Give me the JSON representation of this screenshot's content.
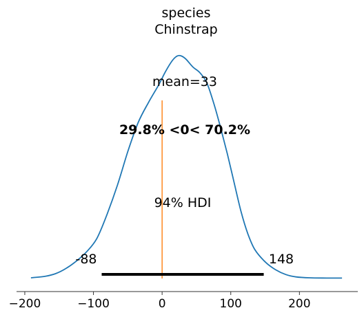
{
  "chart_data": {
    "type": "line",
    "title_line1": "species",
    "title_line2": "Chinstrap",
    "mean_label": "mean=33",
    "reference_label": "29.8% <0< 70.2%",
    "hdi_label": "94% HDI",
    "hdi_low_label": "-88",
    "hdi_high_label": "148",
    "hdi": [
      -88,
      148
    ],
    "reference_value": 0,
    "xlim": [
      -212,
      285
    ],
    "ylim": [
      0,
      1.06
    ],
    "x_ticks": [
      {
        "value": -200,
        "label": "−200"
      },
      {
        "value": -100,
        "label": "−100"
      },
      {
        "value": 0,
        "label": "0"
      },
      {
        "value": 100,
        "label": "100"
      },
      {
        "value": 200,
        "label": "200"
      }
    ],
    "series": [
      {
        "x": [
          -191,
          -170,
          -155,
          -140,
          -125,
          -110,
          -95,
          -80,
          -65,
          -50,
          -35,
          -20,
          -5,
          5,
          15,
          22,
          28,
          35,
          45,
          55,
          65,
          75,
          85,
          95,
          105,
          115,
          125,
          135,
          150,
          165,
          180,
          195,
          215,
          240,
          262
        ],
        "y": [
          0.003,
          0.01,
          0.022,
          0.045,
          0.078,
          0.12,
          0.18,
          0.29,
          0.42,
          0.57,
          0.7,
          0.79,
          0.87,
          0.93,
          0.98,
          1.0,
          1.0,
          0.985,
          0.95,
          0.925,
          0.88,
          0.79,
          0.68,
          0.56,
          0.43,
          0.3,
          0.2,
          0.13,
          0.075,
          0.04,
          0.018,
          0.007,
          0.003,
          0.002,
          0.002
        ]
      }
    ],
    "colors": {
      "density": "#1f77b4",
      "reference": "#ff7f0e",
      "hdi_bar": "#000000",
      "axis": "#333333"
    },
    "grid": false
  }
}
